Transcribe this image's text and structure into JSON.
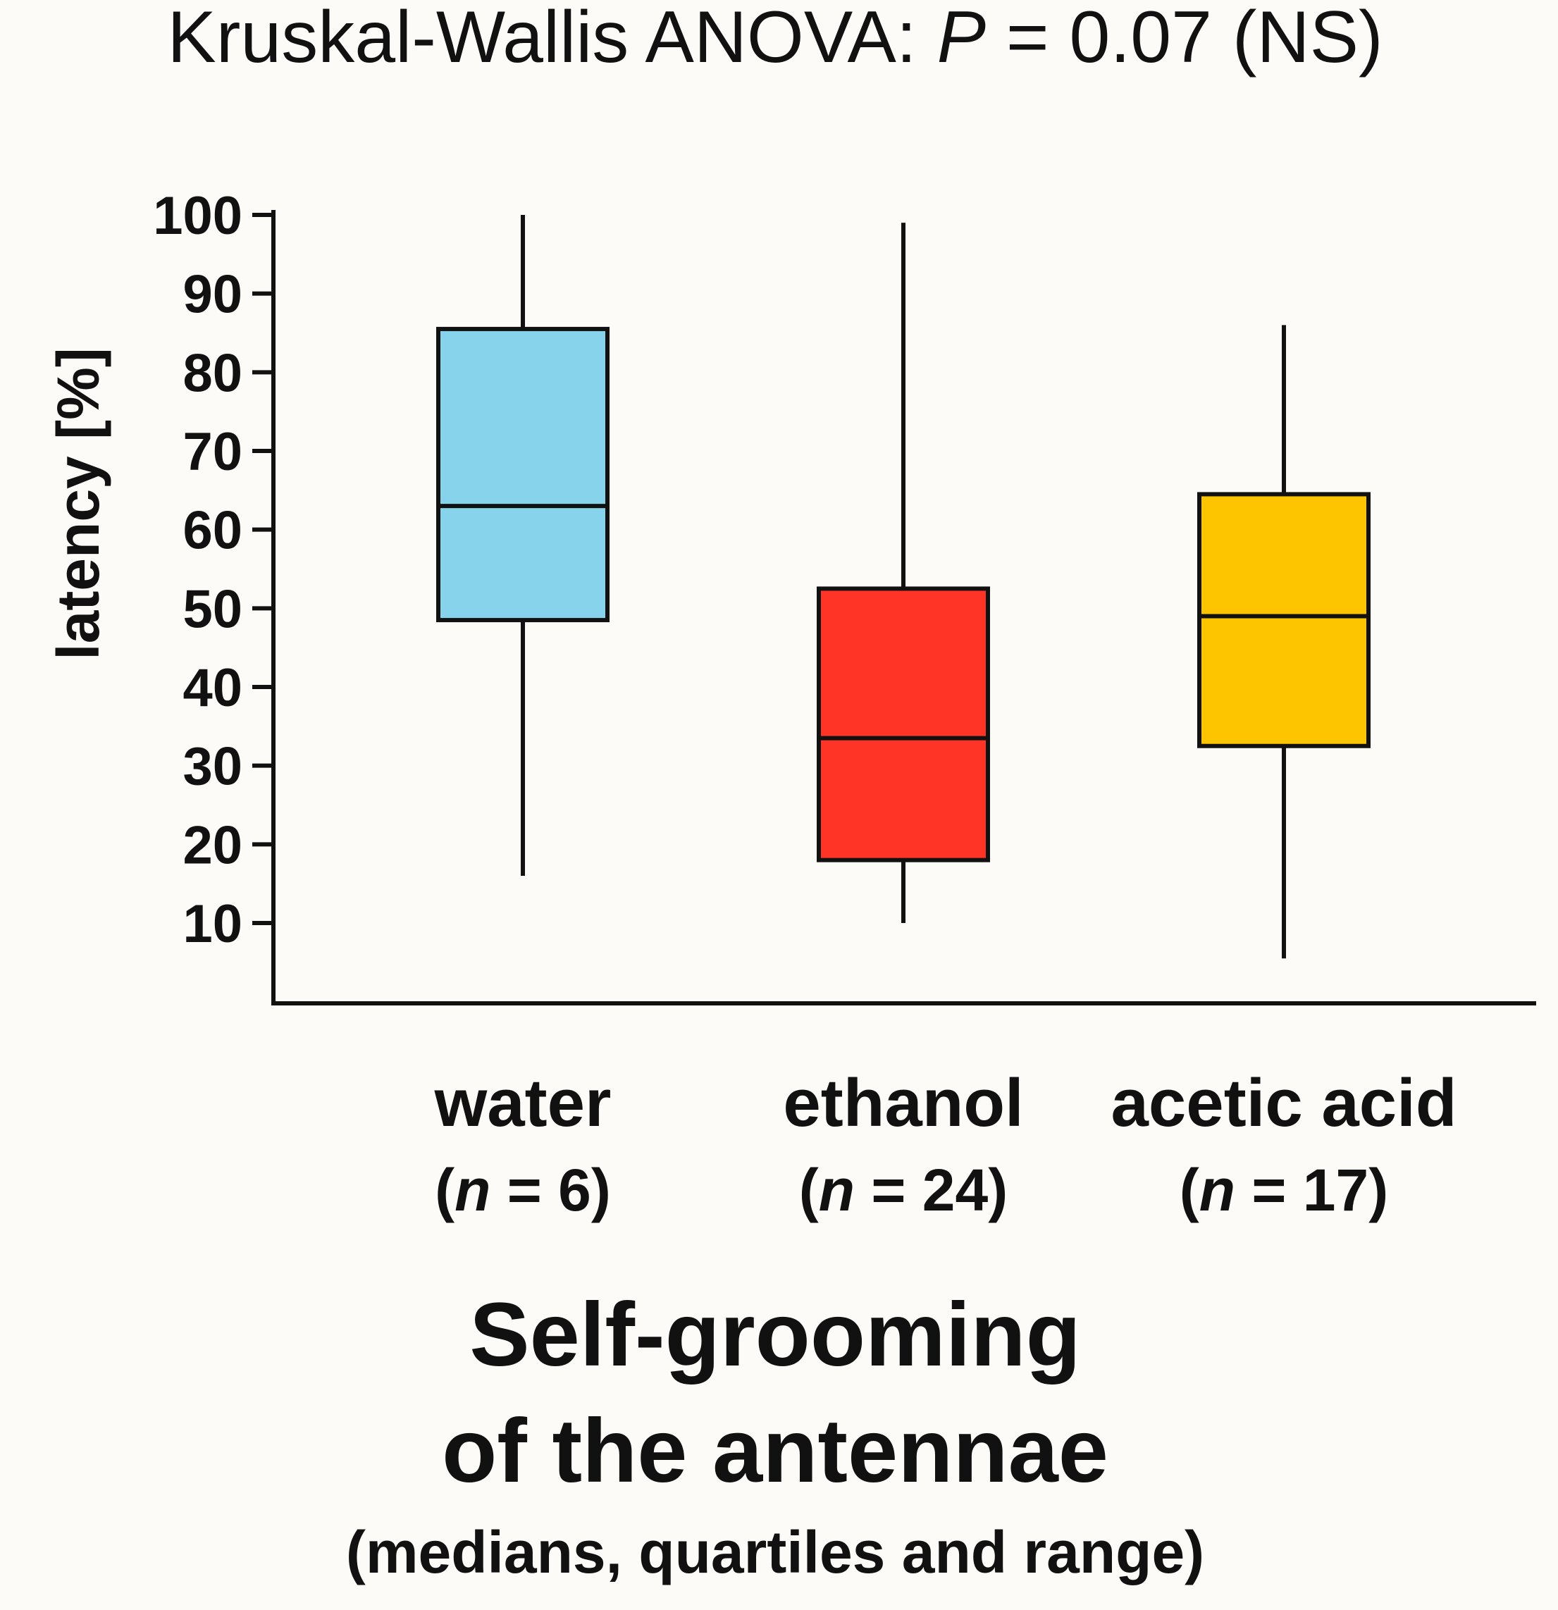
{
  "chart_data": {
    "type": "box",
    "title_prefix": "Kruskal-Wallis ANOVA: ",
    "title_p_symbol": "P",
    "title_suffix": " = 0.07 (NS)",
    "ylabel": "latency [%]",
    "xlabel_line1": "Self-grooming",
    "xlabel_line2": "of the antennae",
    "xlabel_line3": "(medians, quartiles and range)",
    "ylim": [
      0,
      100
    ],
    "yticks": [
      10,
      20,
      30,
      40,
      50,
      60,
      70,
      80,
      90,
      100
    ],
    "grid": false,
    "n_prefix": "(",
    "n_symbol": "n",
    "categories": [
      {
        "name": "water",
        "n_text": " = 6)",
        "min": 16,
        "q1": 48.5,
        "median": 63,
        "q3": 85.5,
        "max": 100,
        "color": "#87d3ec"
      },
      {
        "name": "ethanol",
        "n_text": " = 24)",
        "min": 10,
        "q1": 18,
        "median": 33.5,
        "q3": 52.5,
        "max": 99,
        "color": "#ff3326"
      },
      {
        "name": "acetic acid",
        "n_text": " = 17)",
        "min": 5.5,
        "q1": 32.5,
        "median": 49,
        "q3": 64.5,
        "max": 86,
        "color": "#fdc400"
      }
    ]
  }
}
